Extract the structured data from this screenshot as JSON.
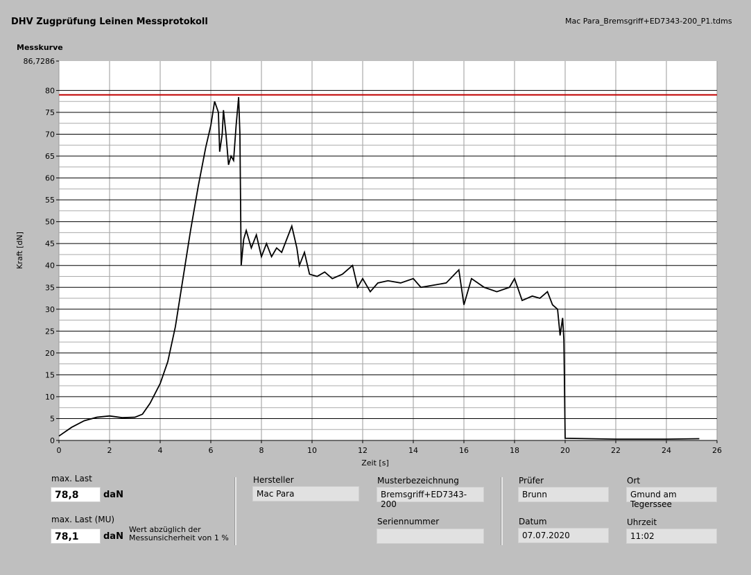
{
  "header": {
    "title": "DHV Zugprüfung Leinen Messprotokoll",
    "file": "Mac Para_Bremsgriff+ED7343-200_P1.tdms"
  },
  "chart_data": {
    "type": "line",
    "title": "Messkurve",
    "xlabel": "Zeit [s]",
    "ylabel": "Kraft [dN]",
    "xlim": [
      0,
      26
    ],
    "xticks": [
      0,
      2,
      4,
      6,
      8,
      10,
      12,
      14,
      16,
      18,
      20,
      22,
      24,
      26
    ],
    "ylim": [
      0,
      86.7286
    ],
    "yticks": [
      0,
      5,
      10,
      15,
      20,
      25,
      30,
      35,
      40,
      45,
      50,
      55,
      60,
      65,
      70,
      75,
      80,
      {
        "value": 86.7286,
        "label": "86,7286"
      }
    ],
    "grid": true,
    "threshold": {
      "value": 79,
      "color": "#c00000"
    },
    "x": [
      0,
      0.5,
      1,
      1.5,
      2,
      2.5,
      3,
      3.3,
      3.6,
      4,
      4.3,
      4.6,
      4.9,
      5.2,
      5.5,
      5.8,
      6.0,
      6.15,
      6.3,
      6.35,
      6.45,
      6.5,
      6.6,
      6.7,
      6.8,
      6.9,
      7.0,
      7.1,
      7.15,
      7.2,
      7.3,
      7.4,
      7.6,
      7.8,
      8.0,
      8.2,
      8.4,
      8.6,
      8.8,
      9.0,
      9.2,
      9.4,
      9.5,
      9.7,
      9.9,
      10.2,
      10.5,
      10.8,
      11.2,
      11.6,
      11.8,
      12.0,
      12.3,
      12.6,
      13.0,
      13.5,
      14.0,
      14.3,
      14.8,
      15.3,
      15.8,
      16.0,
      16.3,
      16.8,
      17.3,
      17.8,
      18.0,
      18.3,
      18.7,
      19.0,
      19.3,
      19.5,
      19.7,
      19.8,
      19.9,
      19.95,
      20.0,
      22,
      24,
      25.3
    ],
    "series": [
      {
        "color": "#000000",
        "values": [
          1,
          3,
          4.5,
          5.3,
          5.6,
          5.2,
          5.3,
          6,
          8.5,
          13,
          18,
          26,
          37,
          48,
          58,
          67,
          72,
          77.5,
          75,
          66,
          70,
          75.5,
          70,
          63,
          65,
          64,
          72,
          78.5,
          70,
          40,
          46,
          48,
          44,
          47,
          42,
          45,
          42,
          44,
          43,
          46,
          49,
          44,
          40,
          43,
          38,
          37.5,
          38.5,
          37,
          38,
          40,
          35,
          37,
          34,
          36,
          36.5,
          36,
          37,
          35,
          35.5,
          36,
          39,
          31,
          37,
          35,
          34,
          35,
          37,
          32,
          33,
          32.5,
          34,
          31,
          30,
          24,
          28,
          23,
          0.5,
          0.3,
          0.3,
          0.4
        ]
      }
    ]
  },
  "panel": {
    "max_last": {
      "label": "max. Last",
      "value": "78,8",
      "unit": "daN"
    },
    "max_last_mu": {
      "label": "max. Last (MU)",
      "value": "78,1",
      "unit": "daN",
      "note": "Wert abzüglich der Messunsicherheit von 1 %"
    },
    "hersteller": {
      "label": "Hersteller",
      "value": "Mac Para"
    },
    "muster": {
      "label": "Musterbezeichnung",
      "value": "Bremsgriff+ED7343-200"
    },
    "serien": {
      "label": "Seriennummer"
    },
    "pruefer": {
      "label": "Prüfer",
      "value": "Brunn"
    },
    "ort": {
      "label": "Ort",
      "value": "Gmund am Tegerssee"
    },
    "datum": {
      "label": "Datum",
      "value": "07.07.2020"
    },
    "uhrzeit": {
      "label": "Uhrzeit",
      "value": "11:02"
    }
  }
}
